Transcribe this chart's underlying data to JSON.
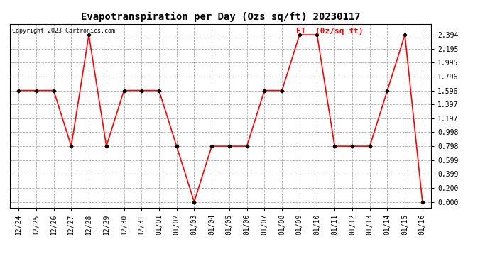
{
  "title": "Evapotranspiration per Day (Ozs sq/ft) 20230117",
  "copyright": "Copyright 2023 Cartronics.com",
  "legend_label": "ET  (0z/sq ft)",
  "x_labels": [
    "12/24",
    "12/25",
    "12/26",
    "12/27",
    "12/28",
    "12/29",
    "12/30",
    "12/31",
    "01/01",
    "01/02",
    "01/03",
    "01/04",
    "01/05",
    "01/06",
    "01/07",
    "01/08",
    "01/09",
    "01/10",
    "01/11",
    "01/12",
    "01/13",
    "01/14",
    "01/15",
    "01/16"
  ],
  "y_values": [
    1.596,
    1.596,
    1.596,
    0.798,
    2.394,
    0.798,
    1.596,
    1.596,
    1.596,
    0.798,
    0.0,
    0.798,
    0.798,
    0.798,
    1.596,
    1.596,
    2.394,
    2.394,
    0.798,
    0.798,
    0.798,
    1.596,
    2.394,
    0.0
  ],
  "y_ticks": [
    0.0,
    0.2,
    0.399,
    0.599,
    0.798,
    0.998,
    1.197,
    1.397,
    1.596,
    1.796,
    1.995,
    2.195,
    2.394
  ],
  "y_tick_labels": [
    "0.000",
    "0.200",
    "0.399",
    "0.599",
    "0.798",
    "0.998",
    "1.197",
    "1.397",
    "1.596",
    "1.796",
    "1.995",
    "2.195",
    "2.394"
  ],
  "line_color": "red",
  "marker_color": "black",
  "marker_style": "D",
  "marker_size": 2.5,
  "line_width": 1.2,
  "plot_bg_color": "#ffffff",
  "fig_bg_color": "#ffffff",
  "grid_color": "#aaaaaa",
  "title_fontsize": 10,
  "copyright_fontsize": 6,
  "legend_fontsize": 8,
  "tick_fontsize": 7,
  "ylim": [
    -0.08,
    2.55
  ]
}
